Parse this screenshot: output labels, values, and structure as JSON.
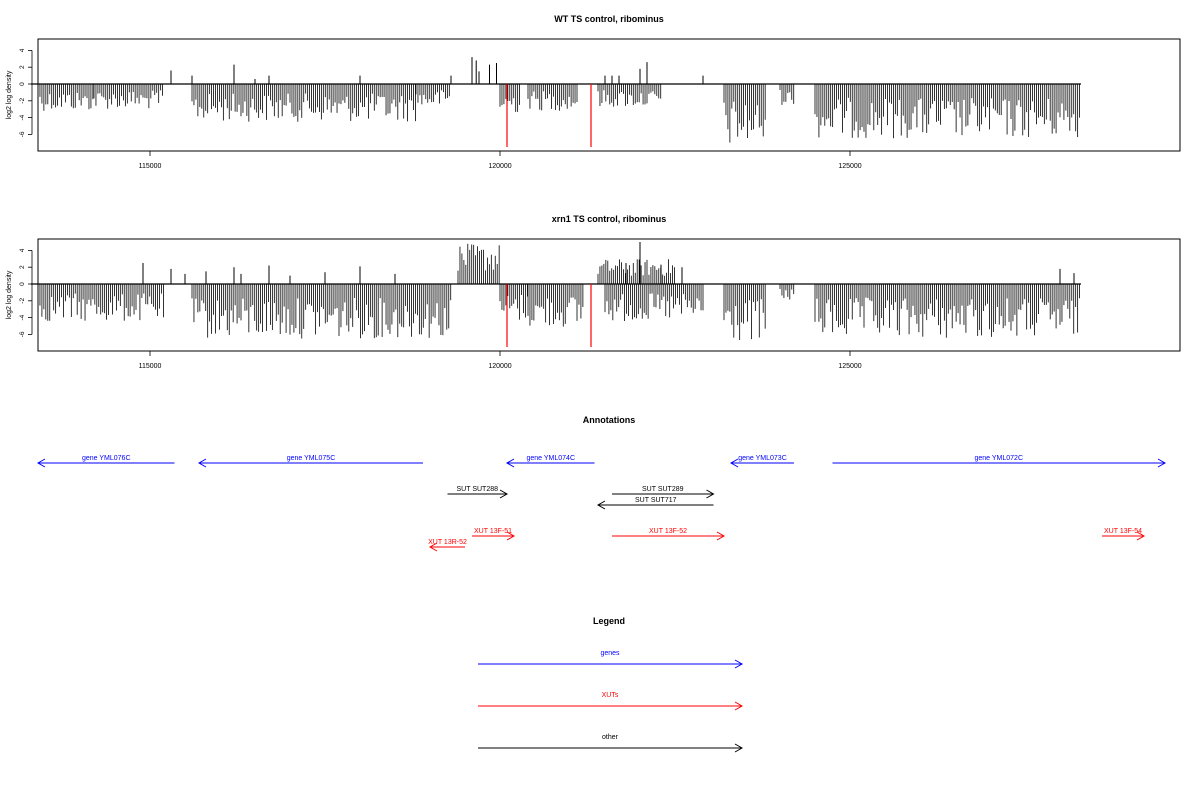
{
  "chart_data": [
    {
      "type": "bar",
      "title": "WT TS control, ribominus",
      "xlabel": "",
      "ylabel": "log2 log density",
      "xlim": [
        113400,
        129500
      ],
      "ylim": [
        -8,
        5.5
      ],
      "x_ticks": [
        115000,
        120000,
        125000
      ],
      "x_tick_labels": [
        "115000",
        "120000",
        "125000"
      ],
      "y_ticks": [
        4,
        2,
        0,
        -2,
        -4,
        -6
      ],
      "y_tick_labels": [
        "4",
        "2",
        "0",
        "-2",
        "-4",
        "-6"
      ],
      "baseline": {
        "from": 113300,
        "to": 128300,
        "y": 0
      },
      "positive_spikes": [
        {
          "x": 115300,
          "y": 1.6
        },
        {
          "x": 115600,
          "y": 1.0
        },
        {
          "x": 116200,
          "y": 2.3
        },
        {
          "x": 116500,
          "y": 0.6
        },
        {
          "x": 116700,
          "y": 1.0
        },
        {
          "x": 118000,
          "y": 1.0
        },
        {
          "x": 119300,
          "y": 1.0
        },
        {
          "x": 119600,
          "y": 3.2
        },
        {
          "x": 119660,
          "y": 2.8
        },
        {
          "x": 119700,
          "y": 1.5
        },
        {
          "x": 119850,
          "y": 2.3
        },
        {
          "x": 119950,
          "y": 2.5
        },
        {
          "x": 121500,
          "y": 1.0
        },
        {
          "x": 121600,
          "y": 1.0
        },
        {
          "x": 121700,
          "y": 1.0
        },
        {
          "x": 122000,
          "y": 1.8
        },
        {
          "x": 122100,
          "y": 2.6
        },
        {
          "x": 122900,
          "y": 1.0
        }
      ],
      "dense_negative_blocks": [
        {
          "from": 113400,
          "to": 114200,
          "min": -3.2
        },
        {
          "from": 114200,
          "to": 115200,
          "min": -3.0
        },
        {
          "from": 115600,
          "to": 118800,
          "min": -4.5
        },
        {
          "from": 118800,
          "to": 119300,
          "min": -2.8
        },
        {
          "from": 120000,
          "to": 120300,
          "min": -3.5
        },
        {
          "from": 120400,
          "to": 121100,
          "min": -3.2
        },
        {
          "from": 121400,
          "to": 122300,
          "min": -2.8
        },
        {
          "from": 123200,
          "to": 123800,
          "min": -7.5
        },
        {
          "from": 124000,
          "to": 124200,
          "min": -2.5
        },
        {
          "from": 124500,
          "to": 128300,
          "min": -6.5
        }
      ],
      "highlight_lines": [
        {
          "x": 120100,
          "y": -7.5,
          "color": "#ff0000"
        },
        {
          "x": 121300,
          "y": -7.5,
          "color": "#ff0000"
        }
      ]
    },
    {
      "type": "bar",
      "title": "xrn1 TS control, ribominus",
      "xlabel": "",
      "ylabel": "log2 log density",
      "xlim": [
        113400,
        129500
      ],
      "ylim": [
        -8,
        5.5
      ],
      "x_ticks": [
        115000,
        120000,
        125000
      ],
      "x_tick_labels": [
        "115000",
        "120000",
        "125000"
      ],
      "y_ticks": [
        4,
        2,
        0,
        -2,
        -4,
        -6
      ],
      "y_tick_labels": [
        "4",
        "2",
        "0",
        "-2",
        "-4",
        "-6"
      ],
      "baseline": {
        "from": 113300,
        "to": 128300,
        "y": 0
      },
      "positive_spikes": [
        {
          "x": 114900,
          "y": 2.5
        },
        {
          "x": 115300,
          "y": 1.8
        },
        {
          "x": 115500,
          "y": 1.2
        },
        {
          "x": 115800,
          "y": 1.5
        },
        {
          "x": 116200,
          "y": 2.0
        },
        {
          "x": 116300,
          "y": 1.2
        },
        {
          "x": 116700,
          "y": 2.2
        },
        {
          "x": 117000,
          "y": 1.0
        },
        {
          "x": 117500,
          "y": 1.4
        },
        {
          "x": 118000,
          "y": 2.1
        },
        {
          "x": 118500,
          "y": 1.2
        },
        {
          "x": 121800,
          "y": 2.5
        },
        {
          "x": 122000,
          "y": 5.0
        },
        {
          "x": 122300,
          "y": 2.3
        },
        {
          "x": 122600,
          "y": 2.0
        },
        {
          "x": 128000,
          "y": 1.8
        },
        {
          "x": 128200,
          "y": 1.3
        }
      ],
      "dense_positive_blocks": [
        {
          "from": 119400,
          "to": 120000,
          "max": 4.8
        },
        {
          "from": 121400,
          "to": 122500,
          "max": 3.0
        }
      ],
      "dense_negative_blocks": [
        {
          "from": 113400,
          "to": 115200,
          "min": -4.5
        },
        {
          "from": 115600,
          "to": 119300,
          "min": -6.5
        },
        {
          "from": 120000,
          "to": 120400,
          "min": -4.5
        },
        {
          "from": 120400,
          "to": 121200,
          "min": -5.2
        },
        {
          "from": 121500,
          "to": 122900,
          "min": -4.5
        },
        {
          "from": 123200,
          "to": 123800,
          "min": -7.0
        },
        {
          "from": 124000,
          "to": 124200,
          "min": -2.0
        },
        {
          "from": 124500,
          "to": 128300,
          "min": -6.5
        }
      ],
      "highlight_lines": [
        {
          "x": 120100,
          "y": -7.5,
          "color": "#ff0000"
        },
        {
          "x": 121300,
          "y": -7.5,
          "color": "#ff0000"
        }
      ]
    }
  ],
  "annotations": {
    "title": "Annotations",
    "features": [
      {
        "label": "gene YML076C",
        "from": 112000,
        "to": 115350,
        "strand": "-",
        "row": 0,
        "kind": "gene"
      },
      {
        "label": "gene YML075C",
        "from": 115700,
        "to": 118900,
        "strand": "-",
        "row": 0,
        "kind": "gene"
      },
      {
        "label": "gene YML074C",
        "from": 120100,
        "to": 121350,
        "strand": "-",
        "row": 0,
        "kind": "gene"
      },
      {
        "label": "gene YML073C",
        "from": 123300,
        "to": 124200,
        "strand": "-",
        "row": 0,
        "kind": "gene"
      },
      {
        "label": "gene YML072C",
        "from": 124750,
        "to": 129500,
        "strand": "+",
        "row": 0,
        "kind": "gene"
      },
      {
        "label": "SUT SUT288",
        "from": 119250,
        "to": 120100,
        "strand": "+",
        "row": 1,
        "kind": "other"
      },
      {
        "label": "SUT SUT289",
        "from": 121600,
        "to": 123050,
        "strand": "+",
        "row": 1,
        "kind": "other"
      },
      {
        "label": "SUT SUT717",
        "from": 121400,
        "to": 123050,
        "strand": "-",
        "row": 2,
        "kind": "other"
      },
      {
        "label": "XUT 13F-51",
        "from": 119600,
        "to": 120200,
        "strand": "+",
        "row": 3,
        "kind": "xut"
      },
      {
        "label": "XUT 13R-52",
        "from": 119000,
        "to": 119500,
        "strand": "-",
        "row": 4,
        "kind": "xut"
      },
      {
        "label": "XUT 13F-52",
        "from": 121600,
        "to": 123200,
        "strand": "+",
        "row": 3,
        "kind": "xut"
      },
      {
        "label": "XUT 13F-54",
        "from": 128600,
        "to": 129200,
        "strand": "+",
        "row": 3,
        "kind": "xut"
      }
    ]
  },
  "legend": {
    "title": "Legend",
    "items": [
      {
        "label": "genes",
        "color": "#0000ff"
      },
      {
        "label": "XUTs",
        "color": "#ff0000"
      },
      {
        "label": "other",
        "color": "#000000"
      }
    ]
  }
}
